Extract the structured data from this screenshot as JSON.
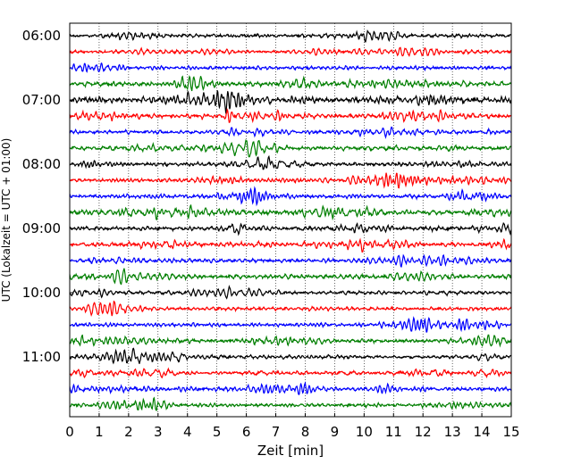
{
  "chart_data": {
    "type": "line",
    "title": "",
    "xlabel": "Zeit  [min]",
    "ylabel": "UTC (Lokalzeit = UTC + 01:00)",
    "xlim": [
      0,
      15
    ],
    "x_ticks": [
      0,
      1,
      2,
      3,
      4,
      5,
      6,
      7,
      8,
      9,
      10,
      11,
      12,
      13,
      14,
      15
    ],
    "y_tick_labels": [
      "06:00",
      "07:00",
      "08:00",
      "09:00",
      "10:00",
      "11:00"
    ],
    "grid": "vertical dotted lines at each minute",
    "trace_interval_minutes": 15,
    "colors": [
      "#000000",
      "#ff0000",
      "#0000ff",
      "#007f00"
    ],
    "traces": [
      {
        "start": "06:00",
        "amp": 0.35
      },
      {
        "start": "06:15",
        "amp": 0.35
      },
      {
        "start": "06:30",
        "amp": 0.35
      },
      {
        "start": "06:45",
        "amp": 0.45
      },
      {
        "start": "07:00",
        "amp": 0.55
      },
      {
        "start": "07:15",
        "amp": 0.4
      },
      {
        "start": "07:30",
        "amp": 0.35
      },
      {
        "start": "07:45",
        "amp": 0.4
      },
      {
        "start": "08:00",
        "amp": 0.35
      },
      {
        "start": "08:15",
        "amp": 0.35
      },
      {
        "start": "08:30",
        "amp": 0.4
      },
      {
        "start": "08:45",
        "amp": 0.45
      },
      {
        "start": "09:00",
        "amp": 0.4
      },
      {
        "start": "09:15",
        "amp": 0.4
      },
      {
        "start": "09:30",
        "amp": 0.4
      },
      {
        "start": "09:45",
        "amp": 0.45
      },
      {
        "start": "10:00",
        "amp": 0.35
      },
      {
        "start": "10:15",
        "amp": 0.35
      },
      {
        "start": "10:30",
        "amp": 0.35
      },
      {
        "start": "10:45",
        "amp": 0.4
      },
      {
        "start": "11:00",
        "amp": 0.35
      },
      {
        "start": "11:15",
        "amp": 0.35
      },
      {
        "start": "11:30",
        "amp": 0.4
      },
      {
        "start": "11:45",
        "amp": 0.35
      }
    ]
  }
}
